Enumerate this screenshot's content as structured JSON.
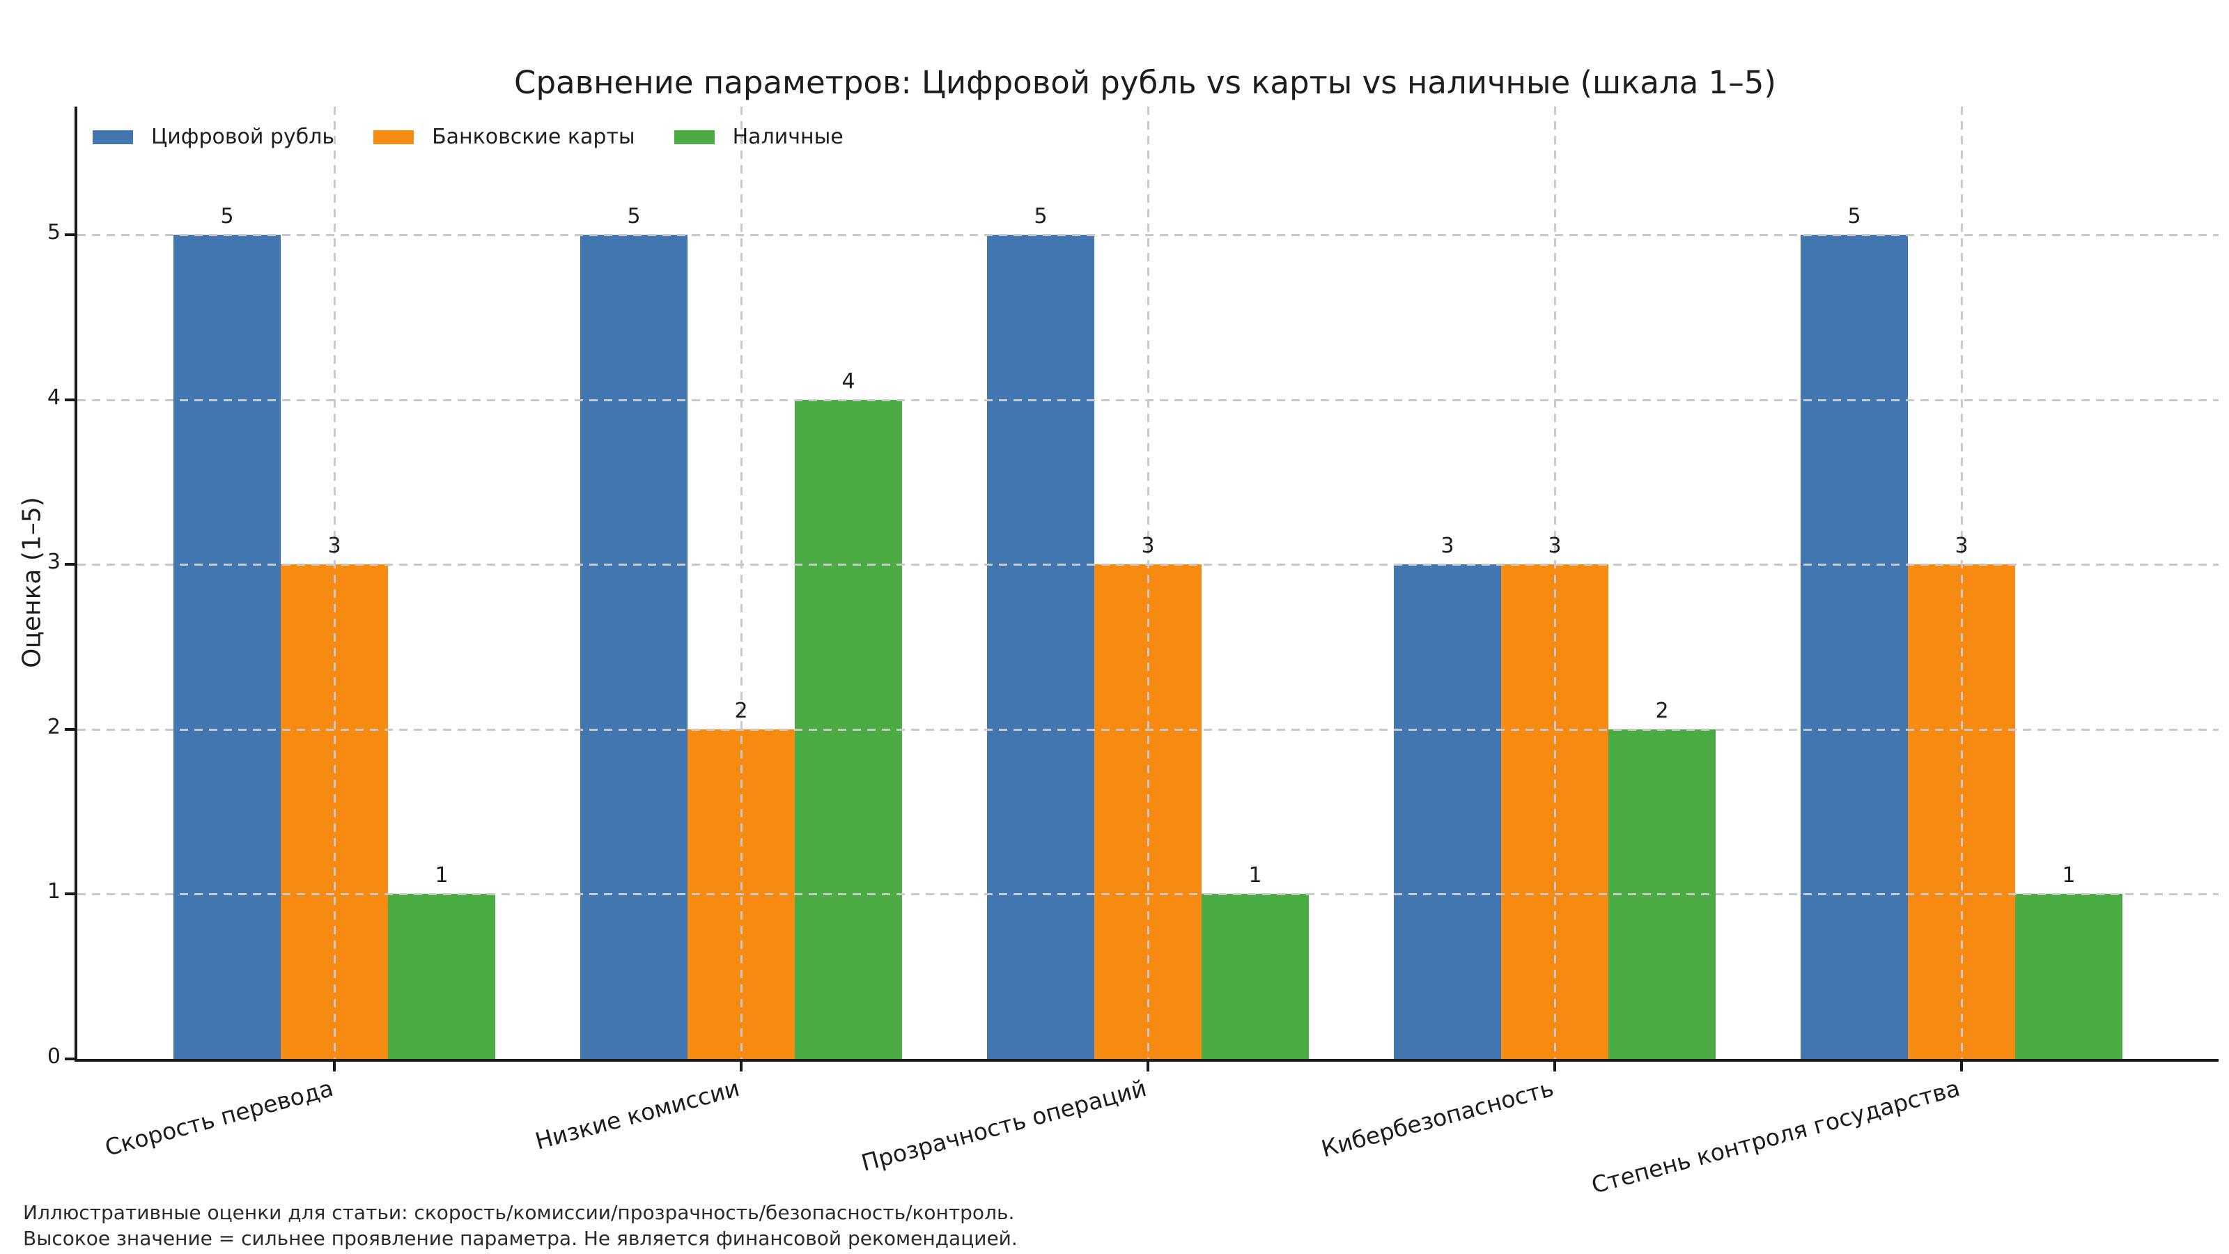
{
  "chart_data": {
    "type": "bar",
    "title": "Сравнение параметров: Цифровой рубль vs карты vs наличные (шкала 1–5)",
    "ylabel": "Оценка (1–5)",
    "xlabel": "",
    "categories": [
      "Скорость перевода",
      "Низкие комиссии",
      "Прозрачность операций",
      "Кибербезопасность",
      "Степень контроля государства"
    ],
    "series": [
      {
        "key": "digital-ruble",
        "name": "Цифровой рубль",
        "color": "#4276B1",
        "values": [
          5,
          5,
          5,
          3,
          5
        ]
      },
      {
        "key": "bank-cards",
        "name": "Банковские карты",
        "color": "#F78A11",
        "values": [
          3,
          2,
          3,
          3,
          3
        ]
      },
      {
        "key": "cash",
        "name": "Наличные",
        "color": "#4AAB42",
        "values": [
          1,
          4,
          1,
          2,
          1
        ]
      }
    ],
    "yticks": [
      0,
      1,
      2,
      3,
      4,
      5
    ],
    "ylim": [
      0,
      5.78
    ],
    "grid": true,
    "grid_style": "dashed",
    "grid_color": "#c9c9c9",
    "legend_position": "upper left",
    "xtick_rotation_deg": 15
  },
  "footnotes": [
    "Иллюстративные оценки для статьи: скорость/комиссии/прозрачность/безопасность/контроль.",
    "Высокое значение = сильнее проявление параметра. Не является финансовой рекомендацией."
  ]
}
